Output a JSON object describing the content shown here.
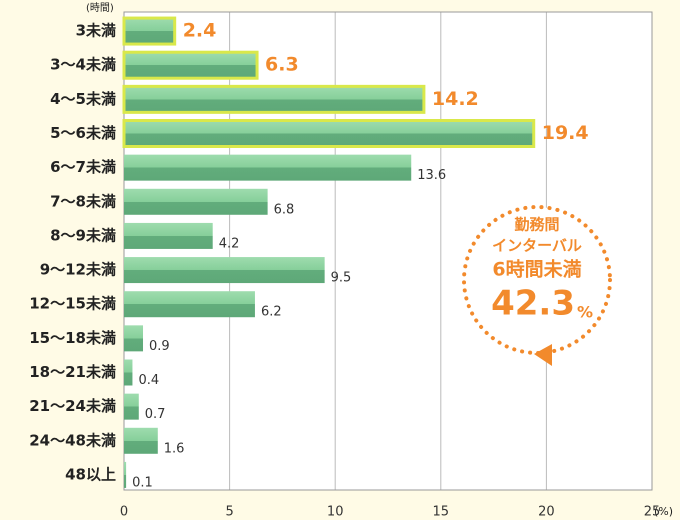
{
  "chart_data": {
    "type": "bar",
    "orientation": "horizontal",
    "y_unit": "(時間)",
    "x_unit": "(%)",
    "categories": [
      "3未満",
      "3～4未満",
      "4～5未満",
      "5～6未満",
      "6～7未満",
      "7～8未満",
      "8～9未満",
      "9～12未満",
      "12～15未満",
      "15～18未満",
      "18～21未満",
      "21～24未満",
      "24～48未満",
      "48以上"
    ],
    "values": [
      2.4,
      6.3,
      14.2,
      19.4,
      13.6,
      6.8,
      4.2,
      9.5,
      6.2,
      0.9,
      0.4,
      0.7,
      1.6,
      0.1
    ],
    "highlighted": [
      true,
      true,
      true,
      true,
      false,
      false,
      false,
      false,
      false,
      false,
      false,
      false,
      false,
      false
    ],
    "color": "#6dbb85",
    "highlight_color": "#d9e84a",
    "xlim": [
      0,
      25
    ],
    "xticks": [
      0,
      5,
      10,
      15,
      20,
      25
    ],
    "grid": true,
    "annotation": {
      "lines": [
        "勤務間",
        "インターバル",
        "6時間未満"
      ],
      "value": 42.3,
      "unit": "%"
    }
  }
}
